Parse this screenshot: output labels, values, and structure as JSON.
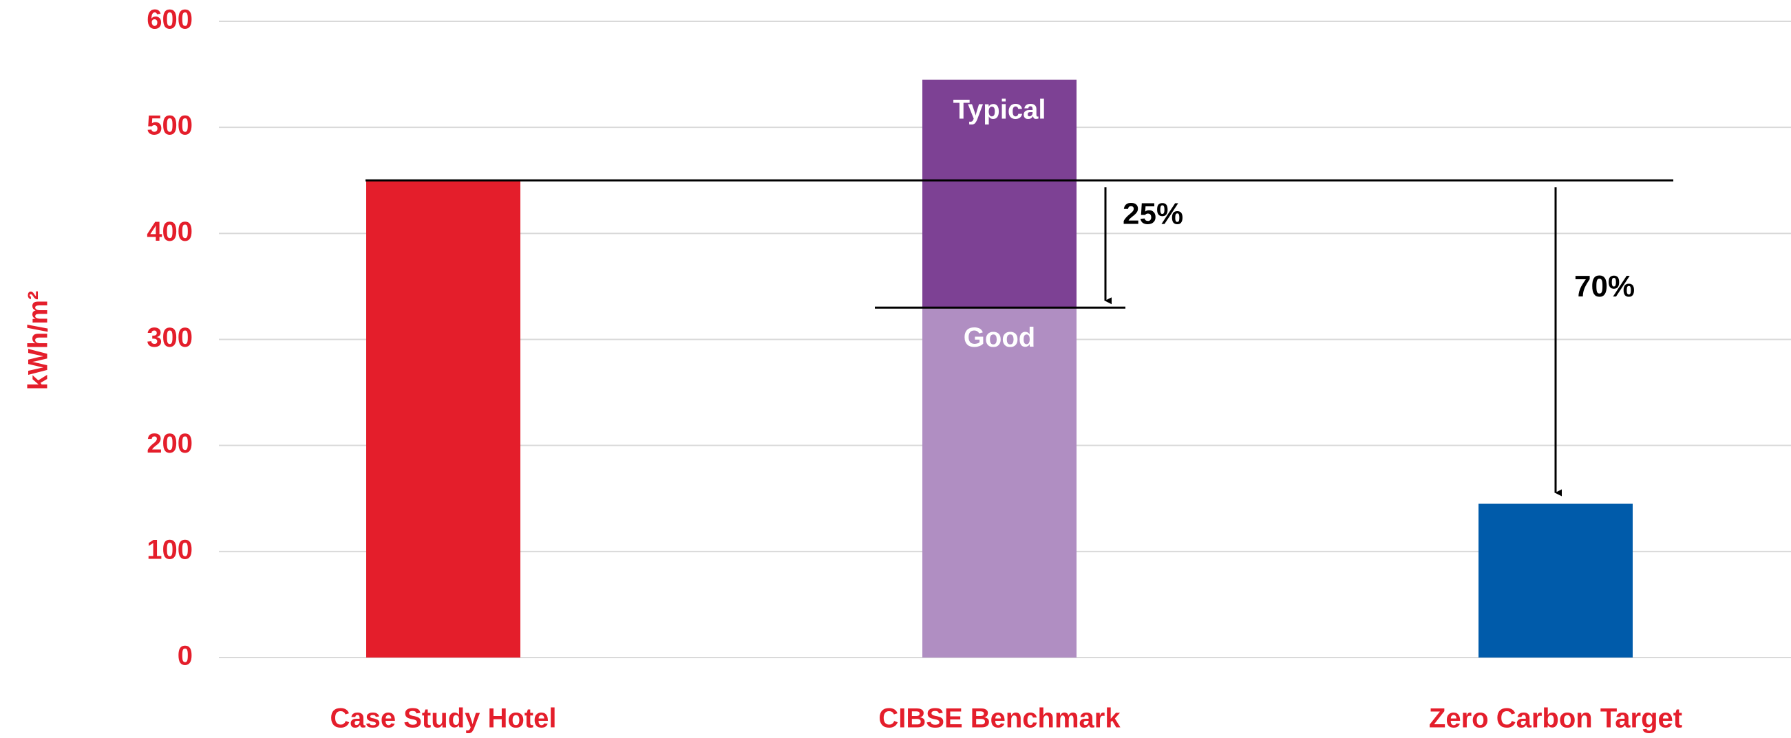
{
  "chart_data": {
    "type": "bar",
    "ylabel": "kWh/m²",
    "categories": [
      "Case Study Hotel",
      "CIBSE Benchmark",
      "Zero Carbon Target"
    ],
    "bars": [
      {
        "segments": [
          {
            "value": 450,
            "color": "#e41e2b"
          }
        ]
      },
      {
        "segments": [
          {
            "name": "Good",
            "value": 330,
            "color": "#b08ec2"
          },
          {
            "name": "Typical",
            "value": 215,
            "color": "#7d4194"
          }
        ]
      },
      {
        "segments": [
          {
            "value": 145,
            "color": "#005baa"
          }
        ]
      }
    ],
    "reference_line": 450,
    "annotations": [
      {
        "label": "25%",
        "from": 450,
        "to": 330
      },
      {
        "label": "70%",
        "from": 450,
        "to": 145
      }
    ],
    "ylim": [
      0,
      600
    ],
    "yticks": [
      0,
      100,
      200,
      300,
      400,
      500,
      600
    ],
    "grid": true
  }
}
